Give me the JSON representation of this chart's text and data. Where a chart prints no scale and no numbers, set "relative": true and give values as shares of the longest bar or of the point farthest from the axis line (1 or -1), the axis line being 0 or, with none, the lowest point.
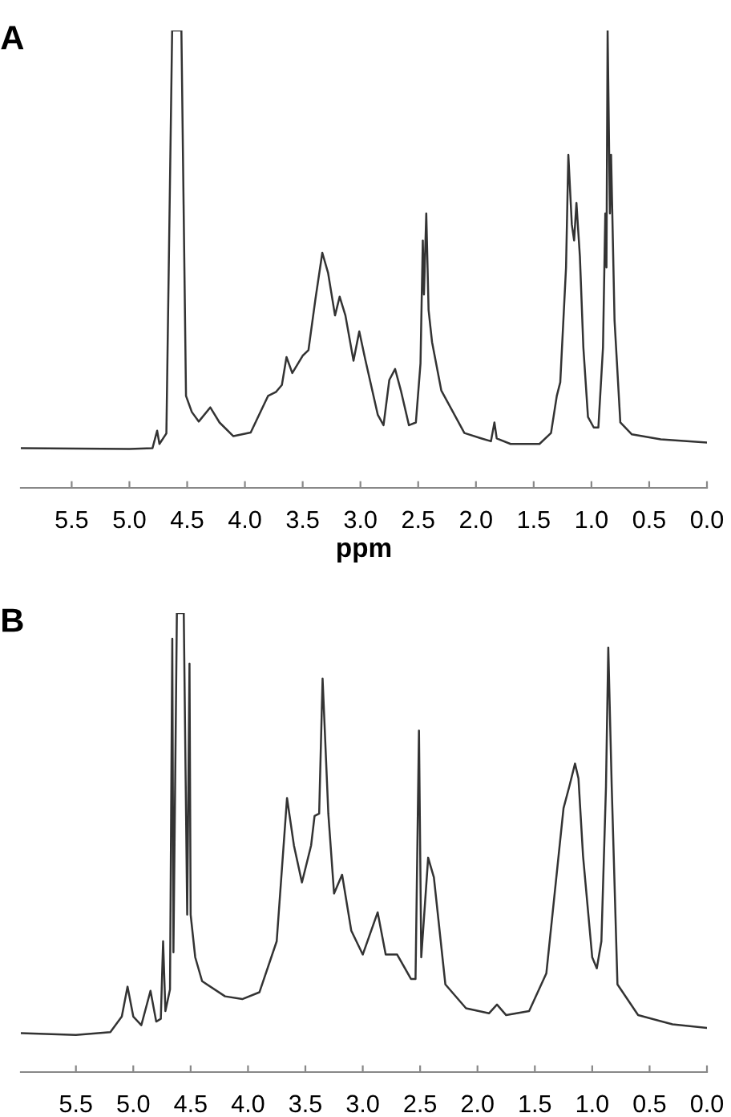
{
  "chart_data": [
    {
      "type": "line",
      "title": "A",
      "xlabel": "ppm",
      "relative": true,
      "tick_labels": "x",
      "grid": false,
      "legend": false,
      "marker": "none",
      "line_style": "solid",
      "xlim": [
        5.94,
        0
      ],
      "xticks": [
        {
          "value": 5.5,
          "label": "5.5"
        },
        {
          "value": 5.0,
          "label": "5.0"
        },
        {
          "value": 4.5,
          "label": "4.5"
        },
        {
          "value": 4.0,
          "label": "4.0"
        },
        {
          "value": 3.5,
          "label": "3.5"
        },
        {
          "value": 3.0,
          "label": "3.0"
        },
        {
          "value": 2.5,
          "label": "2.5"
        },
        {
          "value": 2.0,
          "label": "2.0"
        },
        {
          "value": 1.5,
          "label": "1.5"
        },
        {
          "value": 1.0,
          "label": "1.0"
        },
        {
          "value": 0.5,
          "label": "0.5"
        },
        {
          "value": 0,
          "label": "0.0"
        }
      ],
      "series": [
        {
          "color": "#333333",
          "x": [
            5.94,
            5.0,
            4.8,
            4.76,
            4.74,
            4.68,
            4.63,
            4.55,
            4.51,
            4.46,
            4.4,
            4.3,
            4.22,
            4.1,
            3.95,
            3.8,
            3.73,
            3.68,
            3.64,
            3.59,
            3.5,
            3.45,
            3.39,
            3.33,
            3.28,
            3.22,
            3.18,
            3.13,
            3.06,
            3.01,
            2.96,
            2.85,
            2.8,
            2.75,
            2.7,
            2.65,
            2.58,
            2.52,
            2.48,
            2.46,
            2.45,
            2.43,
            2.41,
            2.38,
            2.3,
            2.1,
            1.95,
            1.87,
            1.84,
            1.82,
            1.7,
            1.45,
            1.35,
            1.3,
            1.27,
            1.22,
            1.2,
            1.17,
            1.15,
            1.13,
            1.1,
            1.07,
            1.03,
            0.98,
            0.94,
            0.9,
            0.88,
            0.87,
            0.86,
            0.84,
            0.83,
            0.8,
            0.75,
            0.65,
            0.4,
            0.0
          ],
          "values": [
            0.087,
            0.085,
            0.087,
            0.125,
            0.096,
            0.119,
            1,
            1,
            0.201,
            0.166,
            0.145,
            0.176,
            0.143,
            0.113,
            0.121,
            0.201,
            0.21,
            0.225,
            0.286,
            0.251,
            0.289,
            0.301,
            0.412,
            0.514,
            0.47,
            0.377,
            0.418,
            0.377,
            0.278,
            0.342,
            0.283,
            0.16,
            0.137,
            0.236,
            0.26,
            0.213,
            0.137,
            0.143,
            0.272,
            0.541,
            0.423,
            0.6,
            0.389,
            0.319,
            0.213,
            0.12,
            0.108,
            0.102,
            0.143,
            0.108,
            0.096,
            0.096,
            0.12,
            0.201,
            0.231,
            0.482,
            0.728,
            0.576,
            0.541,
            0.623,
            0.506,
            0.307,
            0.155,
            0.132,
            0.132,
            0.307,
            0.6,
            0.482,
            1,
            0.6,
            0.728,
            0.366,
            0.143,
            0.117,
            0.106,
            0.099
          ]
        }
      ]
    },
    {
      "type": "line",
      "title": "B",
      "relative": true,
      "tick_labels": "x",
      "grid": false,
      "legend": false,
      "marker": "none",
      "line_style": "solid",
      "xlim": [
        5.98,
        0
      ],
      "xticks": [
        {
          "value": 5.5,
          "label": "5.5"
        },
        {
          "value": 5.0,
          "label": "5.0"
        },
        {
          "value": 4.5,
          "label": "4.5"
        },
        {
          "value": 4.0,
          "label": "4.0"
        },
        {
          "value": 3.5,
          "label": "3.5"
        },
        {
          "value": 3.0,
          "label": "3.0"
        },
        {
          "value": 2.5,
          "label": "2.5"
        },
        {
          "value": 2.0,
          "label": "2.0"
        },
        {
          "value": 1.5,
          "label": "1.5"
        },
        {
          "value": 1.0,
          "label": "1.0"
        },
        {
          "value": 0.5,
          "label": "0.5"
        },
        {
          "value": 0,
          "label": "0.0"
        }
      ],
      "series": [
        {
          "color": "#333333",
          "x": [
            5.98,
            5.5,
            5.2,
            5.1,
            5.05,
            5.0,
            4.93,
            4.85,
            4.8,
            4.76,
            4.74,
            4.72,
            4.68,
            4.66,
            4.65,
            4.62,
            4.58,
            4.56,
            4.53,
            4.51,
            4.5,
            4.46,
            4.4,
            4.2,
            4.05,
            3.9,
            3.75,
            3.66,
            3.6,
            3.53,
            3.45,
            3.42,
            3.38,
            3.35,
            3.3,
            3.25,
            3.18,
            3.1,
            3.0,
            2.87,
            2.8,
            2.7,
            2.58,
            2.54,
            2.51,
            2.49,
            2.43,
            2.38,
            2.28,
            2.1,
            1.9,
            1.83,
            1.75,
            1.55,
            1.4,
            1.25,
            1.2,
            1.15,
            1.12,
            1.08,
            1.0,
            0.96,
            0.92,
            0.88,
            0.86,
            0.83,
            0.78,
            0.6,
            0.3,
            0.0
          ],
          "values": [
            0.085,
            0.081,
            0.087,
            0.121,
            0.186,
            0.121,
            0.102,
            0.177,
            0.11,
            0.116,
            0.285,
            0.133,
            0.18,
            0.944,
            0.261,
            1,
            1,
            1,
            0.343,
            0.89,
            0.343,
            0.25,
            0.198,
            0.165,
            0.159,
            0.174,
            0.285,
            0.597,
            0.494,
            0.413,
            0.494,
            0.558,
            0.563,
            0.857,
            0.563,
            0.389,
            0.43,
            0.308,
            0.256,
            0.348,
            0.256,
            0.256,
            0.203,
            0.203,
            0.744,
            0.25,
            0.467,
            0.424,
            0.191,
            0.139,
            0.128,
            0.147,
            0.124,
            0.133,
            0.215,
            0.575,
            0.622,
            0.672,
            0.64,
            0.471,
            0.25,
            0.226,
            0.285,
            0.622,
            0.925,
            0.622,
            0.191,
            0.124,
            0.104,
            0.096
          ]
        }
      ]
    }
  ]
}
